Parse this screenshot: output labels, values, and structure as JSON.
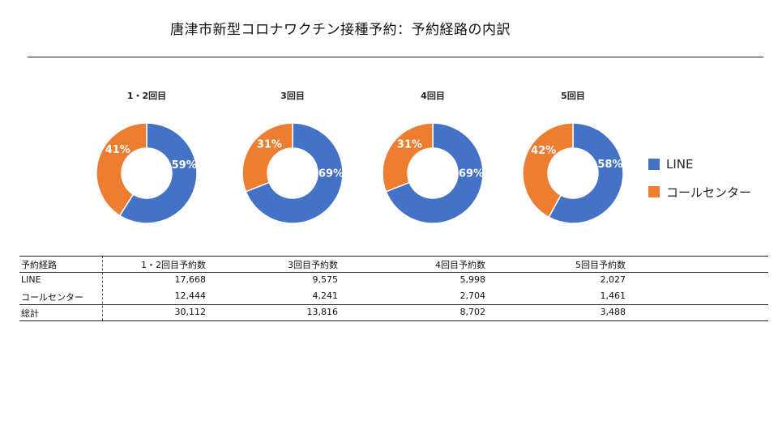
{
  "title": "唐津市新型コロナワクチン接種予約：予約経路の内訳",
  "colors": {
    "line": "#4472C4",
    "call": "#ED7D31"
  },
  "chart_data": {
    "type": "pie",
    "style": "donut",
    "charts": [
      {
        "title": "1・2回目",
        "values": [
          59,
          41
        ],
        "labels": [
          "59%",
          "41%"
        ]
      },
      {
        "title": "3回目",
        "values": [
          69,
          31
        ],
        "labels": [
          "69%",
          "31%"
        ]
      },
      {
        "title": "4回目",
        "values": [
          69,
          31
        ],
        "labels": [
          "69%",
          "31%"
        ]
      },
      {
        "title": "5回目",
        "values": [
          58,
          42
        ],
        "labels": [
          "58%",
          "42%"
        ]
      }
    ],
    "series_names": [
      "LINE",
      "コールセンター"
    ],
    "legend_position": "right"
  },
  "legend": [
    {
      "label": "LINE",
      "color": "#4472C4"
    },
    {
      "label": "コールセンター",
      "color": "#ED7D31"
    }
  ],
  "table": {
    "headers": [
      "予約経路",
      "1・2回目予約数",
      "3回目予約数",
      "4回目予約数",
      "5回目予約数"
    ],
    "rows": [
      [
        "LINE",
        "17,668",
        "9,575",
        "5,998",
        "2,027"
      ],
      [
        "コールセンター",
        "12,444",
        "4,241",
        "2,704",
        "1,461"
      ],
      [
        "総計",
        "30,112",
        "13,816",
        "8,702",
        "3,488"
      ]
    ]
  }
}
